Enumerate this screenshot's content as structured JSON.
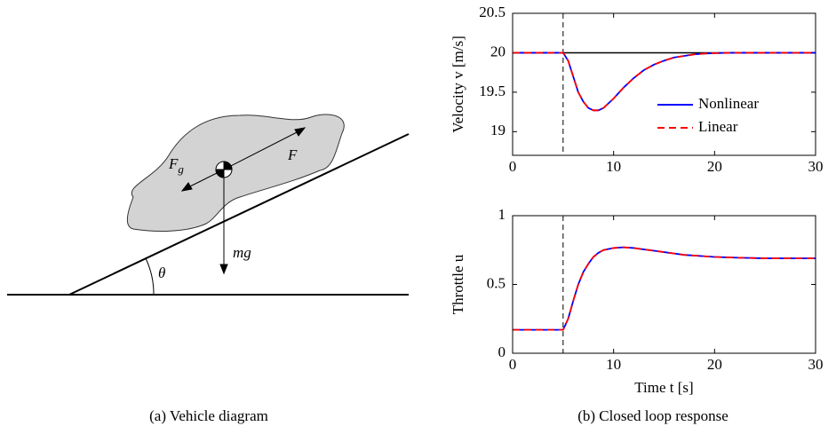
{
  "diagram": {
    "force_f": "F",
    "force_fg": "F",
    "force_fg_sub": "g",
    "force_mg": "mg",
    "angle": "θ"
  },
  "captions": [
    "(a) Vehicle diagram",
    "(b) Closed loop response"
  ],
  "chart_data": [
    {
      "type": "line",
      "ylabel": "Velocity v [m/s]",
      "x": [
        0,
        5,
        5.5,
        6,
        6.5,
        7,
        7.5,
        8,
        8.5,
        9,
        10,
        11,
        12,
        13,
        14,
        15,
        16,
        17,
        18,
        19,
        20,
        22,
        25,
        30
      ],
      "series": [
        {
          "name": "Nonlinear",
          "color": "#0000ff",
          "dash": false,
          "values": [
            20,
            20,
            19.9,
            19.7,
            19.5,
            19.38,
            19.3,
            19.27,
            19.27,
            19.3,
            19.42,
            19.56,
            19.68,
            19.78,
            19.85,
            19.9,
            19.94,
            19.96,
            19.98,
            19.99,
            19.995,
            20,
            20,
            20
          ]
        },
        {
          "name": "Linear",
          "color": "#ff0000",
          "dash": true,
          "values": [
            20,
            20,
            19.9,
            19.7,
            19.5,
            19.38,
            19.3,
            19.27,
            19.27,
            19.3,
            19.42,
            19.56,
            19.68,
            19.78,
            19.85,
            19.9,
            19.94,
            19.96,
            19.98,
            19.99,
            19.995,
            20,
            20,
            20
          ]
        }
      ],
      "hlines": [
        20
      ],
      "vlines": [
        5
      ],
      "xlim": [
        0,
        30
      ],
      "xticks": [
        0,
        10,
        20,
        30
      ],
      "ylim": [
        18.7,
        20.5
      ],
      "yticks": [
        19,
        19.5,
        20,
        20.5
      ],
      "legend": "lower right"
    },
    {
      "type": "line",
      "ylabel": "Throttle u",
      "xlabel": "Time t [s]",
      "x": [
        0,
        5,
        5.5,
        6,
        6.5,
        7,
        7.5,
        8,
        8.5,
        9,
        10,
        11,
        12,
        13,
        14,
        15,
        16,
        17,
        18,
        19,
        20,
        22,
        25,
        30
      ],
      "series": [
        {
          "name": "Nonlinear",
          "color": "#0000ff",
          "dash": false,
          "values": [
            0.17,
            0.17,
            0.25,
            0.38,
            0.5,
            0.59,
            0.65,
            0.7,
            0.73,
            0.75,
            0.765,
            0.77,
            0.765,
            0.755,
            0.745,
            0.735,
            0.725,
            0.715,
            0.71,
            0.705,
            0.7,
            0.695,
            0.69,
            0.69
          ]
        },
        {
          "name": "Linear",
          "color": "#ff0000",
          "dash": true,
          "values": [
            0.17,
            0.17,
            0.25,
            0.38,
            0.5,
            0.59,
            0.65,
            0.7,
            0.73,
            0.75,
            0.765,
            0.77,
            0.765,
            0.755,
            0.745,
            0.735,
            0.725,
            0.715,
            0.71,
            0.705,
            0.7,
            0.695,
            0.69,
            0.69
          ]
        }
      ],
      "vlines": [
        5
      ],
      "xlim": [
        0,
        30
      ],
      "xticks": [
        0,
        10,
        20,
        30
      ],
      "ylim": [
        0,
        1
      ],
      "yticks": [
        0,
        0.5,
        1
      ]
    }
  ]
}
